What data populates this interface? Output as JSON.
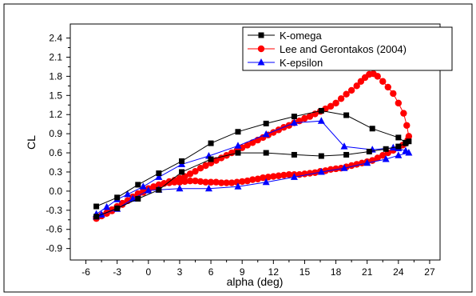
{
  "chart_data": {
    "type": "line",
    "title": "",
    "xlabel": "alpha (deg)",
    "ylabel": "CL",
    "xlim": [
      -7.5,
      28
    ],
    "ylim": [
      -1.08,
      2.62
    ],
    "xticks": [
      -6,
      -3,
      0,
      3,
      6,
      9,
      12,
      15,
      18,
      21,
      24,
      27
    ],
    "yticks": [
      -0.9,
      -0.6,
      -0.3,
      0.0,
      0.3,
      0.6,
      0.9,
      1.2,
      1.5,
      1.8,
      2.1,
      2.4
    ],
    "xtick_labels": [
      "-6",
      "-3",
      "0",
      "3",
      "6",
      "9",
      "12",
      "15",
      "18",
      "21",
      "24",
      "27"
    ],
    "ytick_labels": [
      "-0.9",
      "-0.6",
      "-0.3",
      "0.0",
      "0.3",
      "0.6",
      "0.9",
      "1.2",
      "1.5",
      "1.8",
      "2.1",
      "2.4"
    ],
    "grid": false,
    "legend_position": "top-right",
    "series": [
      {
        "name": "K-omega",
        "color": "#000000",
        "marker": "square",
        "x": [
          -5.0,
          -3.0,
          -1.0,
          1.0,
          3.2,
          6.0,
          8.6,
          11.3,
          14.0,
          16.6,
          19.0,
          21.2,
          22.8,
          24.0,
          24.7,
          25.0,
          24.7,
          24.0,
          21.5,
          19.0,
          16.6,
          14.0,
          11.3,
          8.6,
          6.0,
          3.2,
          1.0,
          -1.0,
          -3.0,
          -5.0
        ],
        "y": [
          -0.4,
          -0.27,
          -0.12,
          0.02,
          0.3,
          0.5,
          0.6,
          0.6,
          0.57,
          0.55,
          0.57,
          0.62,
          0.66,
          0.7,
          0.75,
          0.78,
          0.76,
          0.84,
          0.98,
          1.19,
          1.26,
          1.17,
          1.06,
          0.93,
          0.75,
          0.47,
          0.28,
          0.1,
          -0.1,
          -0.24
        ]
      },
      {
        "name": "Lee and Gerontakos (2004)",
        "color": "#ff0000",
        "marker": "circle",
        "x": [
          -5.0,
          -4.5,
          -4.0,
          -3.5,
          -3.0,
          -2.5,
          -2.0,
          -1.5,
          -1.0,
          -0.5,
          0.0,
          0.5,
          1.0,
          1.5,
          2.0,
          2.5,
          3.0,
          3.5,
          4.0,
          4.5,
          5.0,
          5.5,
          6.0,
          6.5,
          7.0,
          7.5,
          8.0,
          8.5,
          9.0,
          9.5,
          10.0,
          10.5,
          11.0,
          11.5,
          12.0,
          12.5,
          13.0,
          13.5,
          14.0,
          14.5,
          15.0,
          15.5,
          16.0,
          16.5,
          17.0,
          17.5,
          18.0,
          18.5,
          19.0,
          19.5,
          20.0,
          20.4,
          20.8,
          21.2,
          21.6,
          22.0,
          22.5,
          23.0,
          23.5,
          24.0,
          24.5,
          24.8,
          25.0,
          24.9,
          24.7,
          24.4,
          24.0,
          23.5,
          23.0,
          22.5,
          22.0,
          21.5,
          21.0,
          20.5,
          20.0,
          19.5,
          19.0,
          18.5,
          18.0,
          17.5,
          17.0,
          16.5,
          16.0,
          15.5,
          15.0,
          14.5,
          14.0,
          13.5,
          13.0,
          12.5,
          12.0,
          11.5,
          11.0,
          10.5,
          10.0,
          9.5,
          9.0,
          8.5,
          8.0,
          7.5,
          7.0,
          6.5,
          6.0,
          5.5,
          5.0,
          4.5,
          4.0,
          3.5,
          3.0,
          2.5,
          2.0,
          1.5,
          1.0,
          0.5,
          0.0,
          -0.5,
          -1.0,
          -1.5,
          -2.0,
          -2.5,
          -3.0,
          -3.5,
          -4.0,
          -4.5,
          -5.0
        ],
        "y": [
          -0.43,
          -0.39,
          -0.34,
          -0.29,
          -0.24,
          -0.19,
          -0.15,
          -0.1,
          -0.06,
          -0.02,
          0.02,
          0.06,
          0.09,
          0.12,
          0.15,
          0.17,
          0.2,
          0.23,
          0.27,
          0.31,
          0.36,
          0.4,
          0.44,
          0.48,
          0.52,
          0.56,
          0.6,
          0.64,
          0.68,
          0.72,
          0.76,
          0.8,
          0.84,
          0.88,
          0.92,
          0.96,
          1.0,
          1.03,
          1.07,
          1.1,
          1.14,
          1.17,
          1.21,
          1.25,
          1.29,
          1.33,
          1.38,
          1.45,
          1.52,
          1.58,
          1.65,
          1.72,
          1.78,
          1.83,
          1.84,
          1.8,
          1.72,
          1.63,
          1.53,
          1.38,
          1.22,
          1.03,
          0.86,
          0.8,
          0.75,
          0.72,
          0.68,
          0.64,
          0.6,
          0.56,
          0.52,
          0.48,
          0.46,
          0.44,
          0.42,
          0.4,
          0.38,
          0.36,
          0.35,
          0.34,
          0.32,
          0.31,
          0.29,
          0.28,
          0.27,
          0.26,
          0.26,
          0.26,
          0.25,
          0.24,
          0.23,
          0.22,
          0.21,
          0.19,
          0.18,
          0.16,
          0.15,
          0.14,
          0.13,
          0.13,
          0.13,
          0.14,
          0.14,
          0.14,
          0.15,
          0.16,
          0.16,
          0.15,
          0.14,
          0.14,
          0.13,
          0.12,
          0.1,
          0.07,
          0.04,
          0.0,
          -0.04,
          -0.09,
          -0.15,
          -0.21,
          -0.26,
          -0.31,
          -0.35,
          -0.38,
          -0.41
        ]
      },
      {
        "name": "K-epsilon",
        "color": "#0000ff",
        "marker": "triangle",
        "x": [
          -5.0,
          -4.5,
          -3.0,
          -1.5,
          0.0,
          1.0,
          3.0,
          5.8,
          8.6,
          11.3,
          14.0,
          16.6,
          18.8,
          21.0,
          22.8,
          24.0,
          25.0,
          24.7,
          24.0,
          23.5,
          21.5,
          18.8,
          16.6,
          14.0,
          11.3,
          8.6,
          5.8,
          3.2,
          1.0,
          -0.5,
          -2.0,
          -3.0,
          -4.0,
          -5.0
        ],
        "y": [
          -0.4,
          -0.37,
          -0.28,
          -0.12,
          0.01,
          0.02,
          0.04,
          0.04,
          0.07,
          0.14,
          0.22,
          0.3,
          0.36,
          0.44,
          0.5,
          0.56,
          0.6,
          0.63,
          0.67,
          0.68,
          0.65,
          0.7,
          1.1,
          1.07,
          0.89,
          0.71,
          0.55,
          0.42,
          0.22,
          0.07,
          -0.05,
          -0.13,
          -0.25,
          -0.36
        ]
      }
    ]
  }
}
